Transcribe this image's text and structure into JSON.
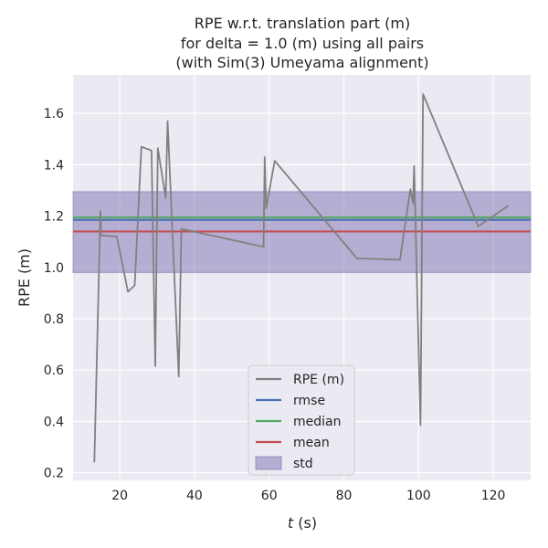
{
  "chart_data": {
    "type": "line",
    "title_lines": [
      "RPE w.r.t. translation part (m)",
      "for delta = 1.0 (m) using all pairs",
      "(with Sim(3) Umeyama alignment)"
    ],
    "xlabel_var": "t",
    "xlabel_unit": " (s)",
    "ylabel": "RPE (m)",
    "xlim": [
      7.5,
      130
    ],
    "ylim": [
      0.17,
      1.75
    ],
    "xticks": [
      20,
      40,
      60,
      80,
      100,
      120
    ],
    "yticks": [
      0.2,
      0.4,
      0.6,
      0.8,
      1.0,
      1.2,
      1.4,
      1.6
    ],
    "ytick_labels": [
      "0.2",
      "0.4",
      "0.6",
      "0.8",
      "1.0",
      "1.2",
      "1.4",
      "1.6"
    ],
    "grid": true,
    "legend_position": "lower center",
    "series": [
      {
        "name": "RPE (m)",
        "color": "#808080",
        "x": [
          13.2,
          14.8,
          15.0,
          19.2,
          22.2,
          24.0,
          25.8,
          28.5,
          29.5,
          30.2,
          32.3,
          32.8,
          35.8,
          36.5,
          58.5,
          58.8,
          59.2,
          61.5,
          83.5,
          95.0,
          97.8,
          98.5,
          98.8,
          100.5,
          101.2,
          116.0,
          124.0
        ],
        "y": [
          0.24,
          1.22,
          1.125,
          1.12,
          0.905,
          0.93,
          1.47,
          1.455,
          0.615,
          1.465,
          1.27,
          1.57,
          0.575,
          1.15,
          1.08,
          1.43,
          1.23,
          1.415,
          1.035,
          1.03,
          1.305,
          1.25,
          1.395,
          0.385,
          1.675,
          1.16,
          1.24
        ]
      }
    ],
    "stats": {
      "rmse": {
        "name": "rmse",
        "value": 1.185,
        "color": "#4c72b0"
      },
      "median": {
        "name": "median",
        "value": 1.195,
        "color": "#55a868"
      },
      "mean": {
        "name": "mean",
        "value": 1.14,
        "color": "#c44e52"
      },
      "std": {
        "name": "std",
        "lower": 0.98,
        "upper": 1.295,
        "color": "#8172b2"
      }
    },
    "legend": [
      "RPE (m)",
      "rmse",
      "median",
      "mean",
      "std"
    ]
  }
}
